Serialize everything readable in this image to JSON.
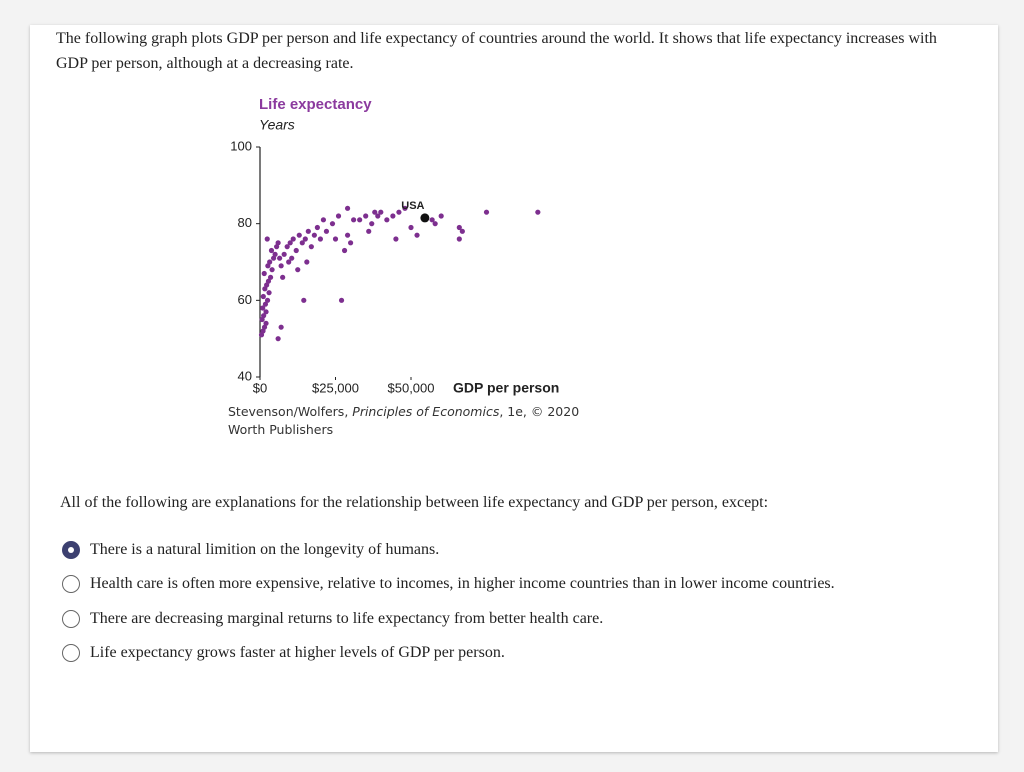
{
  "intro": "The following graph plots GDP per person and life expectancy of countries around the world. It shows that life expectancy increases with GDP per person, although at a decreasing rate.",
  "chart_data": {
    "type": "scatter",
    "title": "Life expectancy",
    "subtitle": "Years",
    "x_label": "GDP per person",
    "color": "#7d2f8f",
    "title_color": "#8b3a9e",
    "xlim": [
      0,
      100000
    ],
    "ylim": [
      40,
      100
    ],
    "xticks": [
      {
        "value": 0,
        "label": "$0"
      },
      {
        "value": 25000,
        "label": "$25,000"
      },
      {
        "value": 50000,
        "label": "$50,000"
      }
    ],
    "yticks": [
      40,
      60,
      80,
      100
    ],
    "grid": false,
    "x": [
      500,
      1000,
      1500,
      700,
      1200,
      2000,
      900,
      1800,
      2500,
      1100,
      3000,
      1600,
      2200,
      2800,
      3500,
      1400,
      4000,
      2600,
      3200,
      4500,
      5000,
      3800,
      5500,
      6000,
      2400,
      7000,
      6500,
      8000,
      9000,
      10000,
      11000,
      12000,
      13000,
      14000,
      15000,
      16000,
      17000,
      18000,
      19000,
      20000,
      7500,
      9500,
      10500,
      12500,
      15500,
      14500,
      6000,
      7000,
      2000,
      27000,
      28000,
      30000,
      29000,
      25000,
      22000,
      24000,
      21000,
      26000,
      31000,
      33000,
      35000,
      37000,
      38000,
      39000,
      40000,
      42000,
      44000,
      46000,
      48000,
      36000,
      50000,
      45000,
      52000,
      58000,
      60000,
      57000,
      66000,
      66000,
      67000,
      75000,
      92000,
      29000
    ],
    "values": [
      51,
      52,
      53,
      55,
      56,
      57,
      58,
      59,
      60,
      61,
      62,
      63,
      64,
      65,
      66,
      67,
      68,
      69,
      70,
      71,
      72,
      73,
      74,
      75,
      76,
      69,
      71,
      72,
      74,
      75,
      76,
      73,
      77,
      75,
      76,
      78,
      74,
      77,
      79,
      76,
      66,
      70,
      71,
      68,
      70,
      60,
      50,
      53,
      54,
      60,
      73,
      75,
      77,
      76,
      78,
      80,
      81,
      82,
      81,
      81,
      82,
      80,
      83,
      82,
      83,
      81,
      82,
      83,
      84,
      78,
      79,
      76,
      77,
      80,
      82,
      81,
      79,
      76,
      78,
      83,
      83,
      84
    ],
    "annotations": [
      {
        "text": "USA",
        "x": 54600,
        "y": 81.5,
        "color": "#111111"
      }
    ],
    "source": [
      "Stevenson/Wolfers, ",
      "Principles of Economics",
      ", 1e, © 2020",
      "Worth Publishers"
    ]
  },
  "question": "All of the following are explanations for the relationship between life expectancy and GDP per person, except:",
  "options": [
    "There is a natural limition on the longevity of humans.",
    "Health care is often more expensive, relative to incomes, in higher income countries than in lower income countries.",
    "There are decreasing marginal returns to life expectancy from better health care.",
    "Life expectancy grows faster at higher levels of GDP per person."
  ],
  "selected": 0
}
